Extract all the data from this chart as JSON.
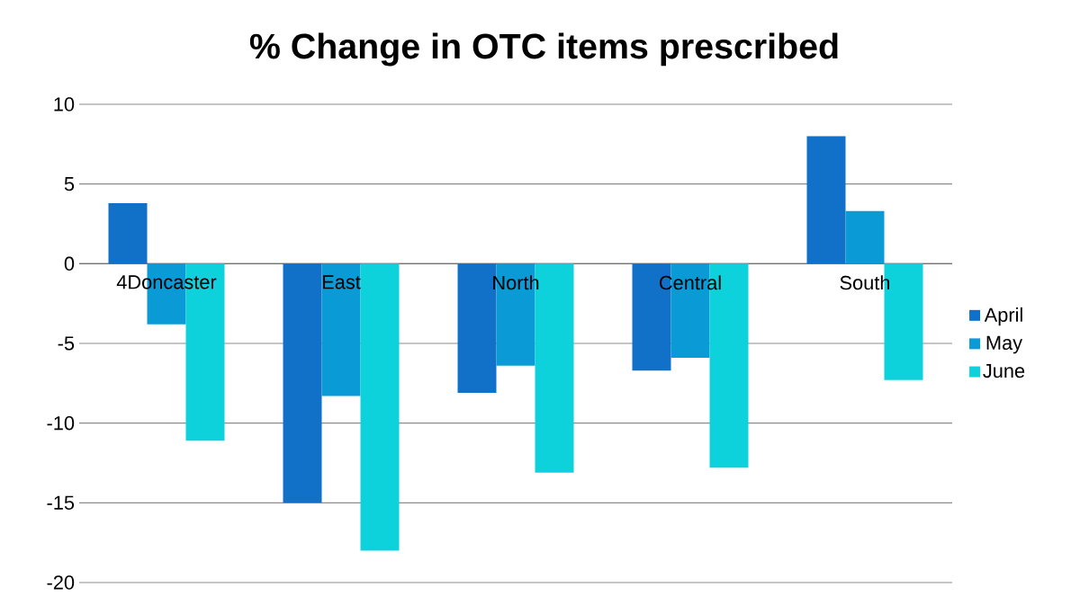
{
  "chart_data": {
    "type": "bar",
    "title": "% Change in OTC items prescribed",
    "categories": [
      "4Doncaster",
      "East",
      "North",
      "Central",
      "South"
    ],
    "series": [
      {
        "name": "April",
        "color": "#1170c8",
        "values": [
          3.8,
          -15.0,
          -8.1,
          -6.7,
          8.0
        ]
      },
      {
        "name": "May",
        "color": "#0a9ad6",
        "values": [
          -3.8,
          -8.3,
          -6.4,
          -5.9,
          3.3
        ]
      },
      {
        "name": "June",
        "color": "#0ed2db",
        "values": [
          -11.1,
          -18.0,
          -13.1,
          -12.8,
          -7.3
        ]
      }
    ],
    "ylim": [
      -20,
      10
    ],
    "yticks": [
      -20,
      -15,
      -10,
      -5,
      0,
      5,
      10
    ],
    "grid": "y",
    "legend": "right"
  }
}
